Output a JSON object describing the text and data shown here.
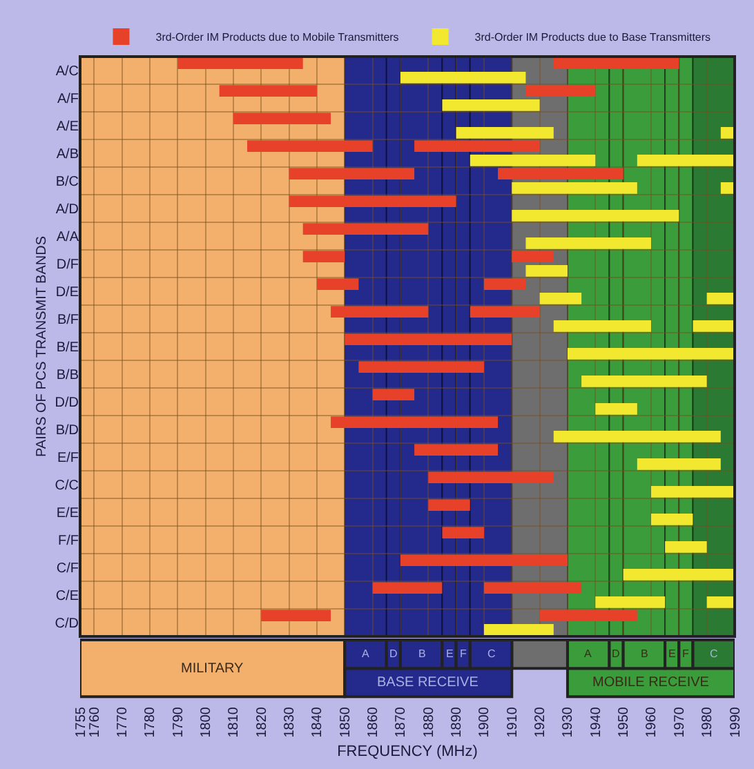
{
  "chart_data": {
    "type": "bar",
    "orientation": "horizontal",
    "xlabel": "FREQUENCY (MHz)",
    "ylabel": "PAIRS OF PCS TRANSMIT BANDS",
    "categories": [
      "A/C",
      "A/F",
      "A/E",
      "A/B",
      "B/C",
      "A/D",
      "A/A",
      "D/F",
      "D/E",
      "B/F",
      "B/E",
      "B/B",
      "D/D",
      "B/D",
      "E/F",
      "C/C",
      "E/E",
      "F/F",
      "C/F",
      "C/E",
      "C/D"
    ],
    "series": [
      {
        "name": "3rd-Order IM Products due to Mobile Transmitters",
        "color": "#e8412a",
        "base": [
          1790,
          1805,
          1810,
          1815,
          1830,
          1830,
          1835,
          1835,
          1840,
          1845,
          1850,
          1855,
          1860,
          1845,
          1875,
          1880,
          1880,
          1885,
          1870,
          1860,
          1820
        ],
        "values": [
          45,
          35,
          35,
          45,
          45,
          60,
          45,
          15,
          15,
          35,
          60,
          45,
          15,
          60,
          30,
          45,
          15,
          15,
          60,
          25,
          25
        ]
      },
      {
        "color": "#e8412a",
        "base": [
          1925,
          1915,
          null,
          1875,
          1905,
          null,
          null,
          1910,
          1900,
          1895,
          null,
          null,
          null,
          null,
          null,
          null,
          null,
          null,
          null,
          1900,
          1920
        ],
        "values": [
          45,
          25,
          null,
          45,
          45,
          null,
          null,
          15,
          15,
          25,
          null,
          null,
          null,
          null,
          null,
          null,
          null,
          null,
          null,
          35,
          35
        ]
      },
      {
        "name": "3rd-Order IM Products due to Base Transmitters",
        "color": "#f2e830",
        "base": [
          1870,
          1885,
          1890,
          1895,
          1910,
          1910,
          1915,
          1915,
          1920,
          1925,
          1930,
          1935,
          1940,
          1925,
          1955,
          1960,
          1960,
          1965,
          1950,
          1940,
          1900
        ],
        "values": [
          45,
          35,
          35,
          45,
          45,
          60,
          45,
          15,
          15,
          35,
          60,
          45,
          15,
          60,
          30,
          30,
          15,
          15,
          40,
          25,
          25
        ]
      },
      {
        "color": "#f2e830",
        "base": [
          null,
          null,
          1985,
          1955,
          1985,
          null,
          null,
          null,
          1980,
          1975,
          null,
          null,
          null,
          null,
          null,
          null,
          null,
          null,
          null,
          1980,
          null
        ],
        "values": [
          null,
          null,
          5,
          35,
          5,
          null,
          null,
          null,
          10,
          15,
          null,
          null,
          null,
          null,
          null,
          null,
          null,
          null,
          null,
          10,
          null
        ]
      }
    ],
    "xlim": [
      1755,
      1990
    ],
    "xticks": [
      1755,
      1760,
      1770,
      1780,
      1790,
      1800,
      1810,
      1820,
      1830,
      1840,
      1850,
      1860,
      1870,
      1880,
      1890,
      1900,
      1910,
      1920,
      1930,
      1940,
      1950,
      1960,
      1970,
      1980,
      1990
    ],
    "bands": [
      {
        "axis": "x",
        "from": 1755,
        "to": 1850,
        "label": "MILITARY",
        "color": "#f2b06c"
      },
      {
        "axis": "x",
        "from": 1850,
        "to": 1910,
        "label": "BASE RECEIVE",
        "color": "#24298c"
      },
      {
        "axis": "x",
        "from": 1910,
        "to": 1930,
        "label": null,
        "color": "#6e6e6e"
      },
      {
        "axis": "x",
        "from": 1930,
        "to": 1990,
        "label": "MOBILE RECEIVE",
        "color": "#3a9c3a"
      },
      {
        "axis": "x",
        "from": 1850,
        "to": 1865,
        "label": "A",
        "color": "#24298c"
      },
      {
        "axis": "x",
        "from": 1865,
        "to": 1870,
        "label": "D",
        "color": "#24298c"
      },
      {
        "axis": "x",
        "from": 1870,
        "to": 1885,
        "label": "B",
        "color": "#24298c"
      },
      {
        "axis": "x",
        "from": 1885,
        "to": 1890,
        "label": "E",
        "color": "#24298c"
      },
      {
        "axis": "x",
        "from": 1890,
        "to": 1895,
        "label": "F",
        "color": "#24298c"
      },
      {
        "axis": "x",
        "from": 1895,
        "to": 1910,
        "label": "C",
        "color": "#24298c"
      },
      {
        "axis": "x",
        "from": 1930,
        "to": 1945,
        "label": "A",
        "color": "#3a9c3a"
      },
      {
        "axis": "x",
        "from": 1945,
        "to": 1950,
        "label": "D",
        "color": "#3a9c3a"
      },
      {
        "axis": "x",
        "from": 1950,
        "to": 1965,
        "label": "B",
        "color": "#3a9c3a"
      },
      {
        "axis": "x",
        "from": 1965,
        "to": 1970,
        "label": "E",
        "color": "#3a9c3a"
      },
      {
        "axis": "x",
        "from": 1970,
        "to": 1975,
        "label": "F",
        "color": "#3a9c3a"
      },
      {
        "axis": "x",
        "from": 1975,
        "to": 1990,
        "label": "C",
        "color": "#2a7a34"
      }
    ],
    "grid": true,
    "legend": "top"
  }
}
